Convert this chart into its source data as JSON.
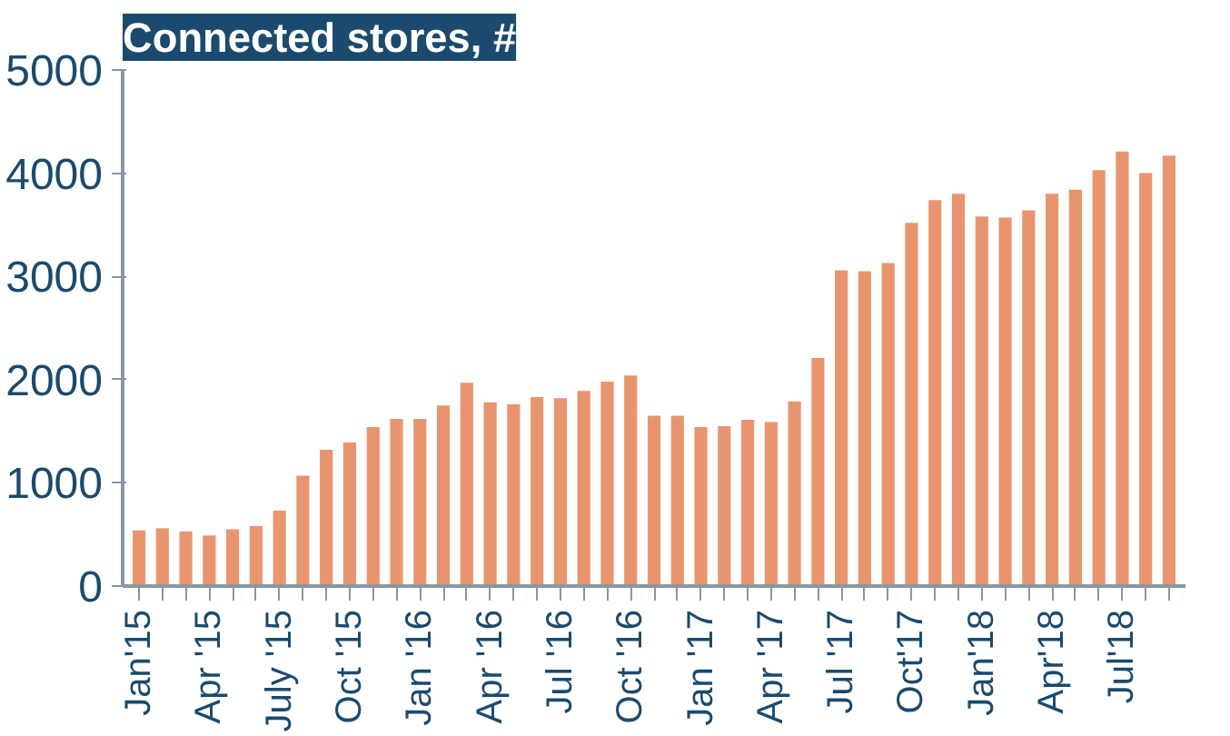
{
  "chart_data": {
    "type": "bar",
    "title": "Connected stores, #",
    "categories": [
      "Jan'15",
      null,
      null,
      "Apr '15",
      null,
      null,
      "July '15",
      null,
      null,
      "Oct '15",
      null,
      null,
      "Jan '16",
      null,
      null,
      "Apr '16",
      null,
      null,
      "Jul '16",
      null,
      null,
      "Oct '16",
      null,
      null,
      "Jan '17",
      null,
      null,
      "Apr '17",
      null,
      null,
      "Jul '17",
      null,
      null,
      "Oct'17",
      null,
      null,
      "Jan'18",
      null,
      null,
      "Apr'18",
      null,
      null,
      "Jul'18",
      null,
      null
    ],
    "values": [
      540,
      560,
      530,
      490,
      550,
      580,
      730,
      1070,
      1320,
      1390,
      1540,
      1620,
      1620,
      1750,
      1970,
      1780,
      1760,
      1830,
      1820,
      1890,
      1980,
      2040,
      1650,
      1650,
      1540,
      1550,
      1610,
      1590,
      1790,
      2210,
      3060,
      3050,
      3130,
      3520,
      3740,
      3800,
      3580,
      3570,
      3640,
      3800,
      3840,
      4030,
      4210,
      4000,
      4170
    ],
    "color": "#e8956f",
    "ylim": [
      0,
      5000
    ],
    "yticks": [
      0,
      1000,
      2000,
      3000,
      4000,
      5000
    ],
    "grid": false
  }
}
